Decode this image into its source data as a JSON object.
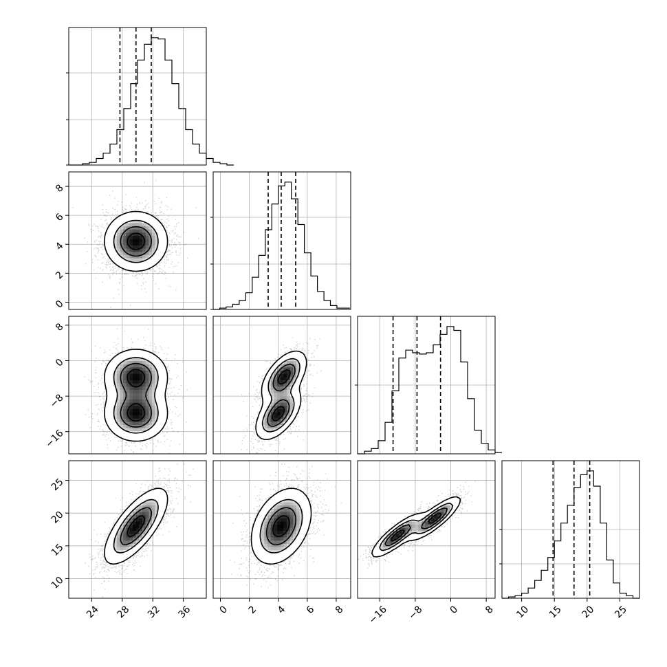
{
  "chart_data": {
    "type": "corner",
    "description_free": true,
    "n_params": 4,
    "params": [
      {
        "range": [
          21,
          39
        ],
        "ticks": [
          24,
          28,
          32,
          36
        ],
        "tick_labels": [
          "24",
          "28",
          "32",
          "36"
        ]
      },
      {
        "range": [
          -0.5,
          9
        ],
        "ticks": [
          0,
          2,
          4,
          6,
          8
        ],
        "tick_labels": [
          "0",
          "2",
          "4",
          "6",
          "8"
        ]
      },
      {
        "range": [
          -21,
          10
        ],
        "ticks": [
          -16,
          -8,
          0,
          8
        ],
        "tick_labels": [
          "−16",
          "−8",
          "0",
          "8"
        ]
      },
      {
        "range": [
          7,
          28
        ],
        "ticks": [
          10,
          15,
          20,
          25
        ],
        "tick_labels": [
          "10",
          "15",
          "20",
          "25"
        ]
      }
    ],
    "quantiles": [
      [
        27.7,
        29.8,
        31.8
      ],
      [
        3.3,
        4.2,
        5.2
      ],
      [
        -13.0,
        -7.6,
        -2.3
      ],
      [
        14.8,
        18.0,
        20.4
      ]
    ],
    "histograms": [
      {
        "edges_start": 21,
        "bin_width": 0.9,
        "counts": [
          0,
          0,
          0.01,
          0.02,
          0.05,
          0.09,
          0.16,
          0.27,
          0.43,
          0.62,
          0.8,
          0.92,
          0.97,
          0.96,
          0.8,
          0.62,
          0.43,
          0.27,
          0.16,
          0.09,
          0.05,
          0.02,
          0.01,
          0
        ],
        "y_ticks": [
          0,
          0.33,
          0.67
        ]
      },
      {
        "edges_start": -0.5,
        "bin_width": 0.45,
        "counts": [
          0,
          0.01,
          0.02,
          0.04,
          0.07,
          0.13,
          0.25,
          0.42,
          0.62,
          0.82,
          0.96,
          0.99,
          0.86,
          0.66,
          0.44,
          0.26,
          0.14,
          0.07,
          0.03,
          0.01,
          0.01
        ],
        "y_ticks": [
          0,
          0.33,
          0.67
        ]
      },
      {
        "edges_start": -21,
        "bin_width": 1.55,
        "counts": [
          0,
          0.02,
          0.04,
          0.1,
          0.24,
          0.48,
          0.73,
          0.79,
          0.77,
          0.76,
          0.77,
          0.83,
          0.91,
          0.97,
          0.94,
          0.7,
          0.42,
          0.18,
          0.08,
          0.03,
          0.01
        ],
        "y_ticks": [
          0.5
        ]
      },
      {
        "edges_start": 7,
        "bin_width": 1.0,
        "counts": [
          0,
          0.01,
          0.02,
          0.04,
          0.08,
          0.14,
          0.22,
          0.32,
          0.45,
          0.59,
          0.73,
          0.87,
          0.97,
          1.0,
          0.88,
          0.59,
          0.3,
          0.12,
          0.04,
          0.02,
          0
        ],
        "y_ticks": [
          0.25,
          0.5
        ]
      }
    ],
    "pairs": [
      {
        "x": 0,
        "y": 1,
        "components": [
          {
            "mx": 29.8,
            "my": 4.2,
            "sx": 2.0,
            "sy": 1.0,
            "rho": 0,
            "w": 1
          }
        ]
      },
      {
        "x": 0,
        "y": 2,
        "components": [
          {
            "mx": 29.8,
            "my": -3.6,
            "sx": 2.0,
            "sy": 3.0,
            "rho": 0,
            "w": 0.5
          },
          {
            "mx": 29.8,
            "my": -12.0,
            "sx": 2.0,
            "sy": 3.0,
            "rho": 0,
            "w": 0.5
          }
        ]
      },
      {
        "x": 0,
        "y": 3,
        "components": [
          {
            "mx": 29.8,
            "my": 18.0,
            "sx": 2.0,
            "sy": 2.8,
            "rho": 0.72,
            "w": 1
          }
        ]
      },
      {
        "x": 1,
        "y": 2,
        "components": [
          {
            "mx": 4.4,
            "my": -3.6,
            "sx": 0.75,
            "sy": 2.8,
            "rho": 0.55,
            "w": 0.5
          },
          {
            "mx": 4.0,
            "my": -12.0,
            "sx": 0.75,
            "sy": 2.8,
            "rho": 0.55,
            "w": 0.5
          }
        ]
      },
      {
        "x": 1,
        "y": 3,
        "components": [
          {
            "mx": 4.2,
            "my": 18.0,
            "sx": 1.0,
            "sy": 2.8,
            "rho": 0.35,
            "w": 1
          }
        ]
      },
      {
        "x": 2,
        "y": 3,
        "components": [
          {
            "mx": -3.6,
            "my": 19.2,
            "sx": 2.8,
            "sy": 1.6,
            "rho": 0.85,
            "w": 0.5
          },
          {
            "mx": -12.0,
            "my": 16.6,
            "sx": 2.8,
            "sy": 1.6,
            "rho": 0.85,
            "w": 0.5
          }
        ]
      }
    ],
    "contour_levels": [
      0.12,
      0.35,
      0.6,
      0.85
    ],
    "grid": true,
    "colors": {
      "line": "#000000",
      "grid": "#b0b0b0",
      "points": "#000000",
      "density": "#000000"
    }
  }
}
